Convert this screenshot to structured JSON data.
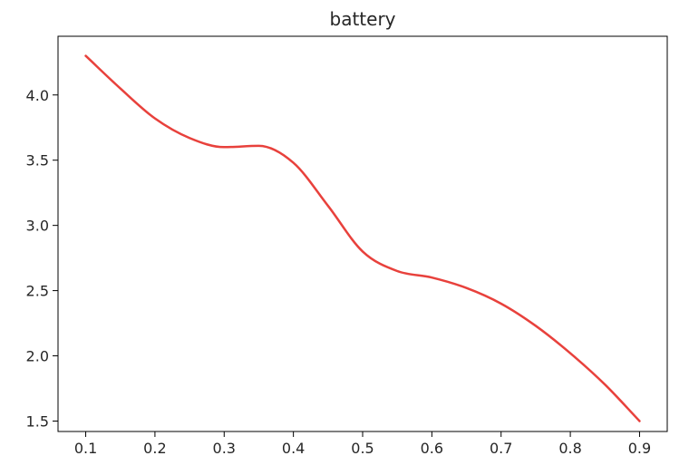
{
  "chart_data": {
    "type": "line",
    "title": "battery",
    "xlabel": "",
    "ylabel": "",
    "xlim": [
      0.06,
      0.94
    ],
    "ylim": [
      1.42,
      4.45
    ],
    "grid": false,
    "legend": "none",
    "xticks": [
      0.1,
      0.2,
      0.3,
      0.4,
      0.5,
      0.6,
      0.7,
      0.8,
      0.9
    ],
    "xtick_labels": [
      "0.1",
      "0.2",
      "0.3",
      "0.4",
      "0.5",
      "0.6",
      "0.7",
      "0.8",
      "0.9"
    ],
    "yticks": [
      1.5,
      2.0,
      2.5,
      3.0,
      3.5,
      4.0
    ],
    "ytick_labels": [
      "1.5",
      "2.0",
      "2.5",
      "3.0",
      "3.5",
      "4.0"
    ],
    "series": [
      {
        "color": "#e8413c",
        "x": [
          0.1,
          0.15,
          0.2,
          0.25,
          0.3,
          0.35,
          0.4,
          0.45,
          0.5,
          0.55,
          0.6,
          0.65,
          0.7,
          0.75,
          0.8,
          0.85,
          0.9
        ],
        "y": [
          4.3,
          4.05,
          3.82,
          3.67,
          3.6,
          3.61,
          3.48,
          3.15,
          2.8,
          2.65,
          2.6,
          2.52,
          2.4,
          2.23,
          2.02,
          1.78,
          1.5
        ]
      }
    ]
  }
}
